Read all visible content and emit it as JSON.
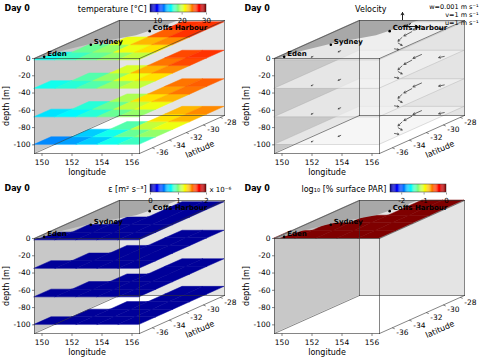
{
  "chart_data": [
    {
      "type": "surface_slices",
      "title": "temperature [°C]",
      "day_label": "Day 0",
      "xlabel": "longitude",
      "ylabel": "latitude",
      "zlabel": "depth [m]",
      "xlim": [
        149.5,
        156.5
      ],
      "xticks": [
        150,
        152,
        154,
        156
      ],
      "ylim": [
        -37.5,
        -27.5
      ],
      "yticks": [
        -36,
        -34,
        -32,
        -30,
        -28
      ],
      "zlim": [
        -110,
        0
      ],
      "zticks": [
        -100,
        -80,
        -60,
        -40,
        -20,
        0
      ],
      "places": [
        {
          "name": "Eden",
          "lon": 149.9,
          "lat": -37.07
        },
        {
          "name": "Sydney",
          "lon": 151.2,
          "lat": -33.87
        },
        {
          "name": "Coffs Harbour",
          "lon": 153.1,
          "lat": -30.3
        }
      ],
      "coast": {
        "lat": [
          -37.5,
          -35.5,
          -33.5,
          -31.5,
          -29.5,
          -27.5
        ],
        "lon": [
          149.9,
          150.3,
          151.3,
          152.9,
          153.3,
          153.5
        ]
      },
      "grid_lon_edges": [
        149.5,
        150.9,
        152.3,
        153.7,
        155.1,
        156.5
      ],
      "grid_lat_edges": [
        -37.5,
        -35.5,
        -33.5,
        -31.5,
        -29.5,
        -27.5
      ],
      "clim": [
        7,
        30
      ],
      "cticks": [
        10,
        20,
        30
      ],
      "slices": [
        {
          "depth": -2,
          "values": [
            [
              16,
              17,
              18,
              19,
              20
            ],
            [
              null,
              18,
              19,
              21,
              22
            ],
            [
              null,
              null,
              21,
              23,
              24
            ],
            [
              null,
              null,
              null,
              25,
              26
            ],
            [
              null,
              null,
              null,
              26,
              26
            ]
          ]
        },
        {
          "depth": -35,
          "values": [
            [
              16,
              16.5,
              17.5,
              19,
              20
            ],
            [
              null,
              17.5,
              19,
              21,
              22
            ],
            [
              null,
              null,
              20.5,
              23,
              24
            ],
            [
              null,
              null,
              null,
              24.5,
              25.5
            ],
            [
              null,
              null,
              null,
              25.5,
              26
            ]
          ]
        },
        {
          "depth": -68,
          "values": [
            [
              15,
              15.5,
              16.5,
              18,
              19
            ],
            [
              null,
              16.5,
              18,
              20,
              21
            ],
            [
              null,
              null,
              19.5,
              22,
              23
            ],
            [
              null,
              null,
              null,
              23.5,
              24.5
            ],
            [
              null,
              null,
              null,
              24.5,
              25
            ]
          ]
        },
        {
          "depth": -100,
          "values": [
            [
              13,
              13.5,
              14.5,
              16,
              17
            ],
            [
              null,
              14.5,
              16,
              18,
              19
            ],
            [
              null,
              null,
              17.5,
              20,
              21
            ],
            [
              null,
              null,
              null,
              22,
              23
            ],
            [
              null,
              null,
              null,
              23,
              24
            ]
          ]
        }
      ]
    },
    {
      "type": "vector_slices",
      "title": "Velocity",
      "day_label": "Day 0",
      "xlabel": "longitude",
      "ylabel": "latitude",
      "zlabel": "depth [m]",
      "xlim": [
        149.5,
        156.5
      ],
      "xticks": [
        150,
        152,
        154,
        156
      ],
      "ylim": [
        -37.5,
        -27.5
      ],
      "yticks": [
        -36,
        -34,
        -32,
        -30,
        -28
      ],
      "zlim": [
        -110,
        0
      ],
      "zticks": [
        -100,
        -80,
        -60,
        -40,
        -20,
        0
      ],
      "places": [
        {
          "name": "Eden",
          "lon": 149.9,
          "lat": -37.07
        },
        {
          "name": "Sydney",
          "lon": 151.2,
          "lat": -33.87
        },
        {
          "name": "Coffs Harbour",
          "lon": 153.1,
          "lat": -30.3
        }
      ],
      "coast": {
        "lat": [
          -37.5,
          -35.5,
          -33.5,
          -31.5,
          -29.5,
          -27.5
        ],
        "lon": [
          149.9,
          150.3,
          151.3,
          152.9,
          153.3,
          153.5
        ]
      },
      "slice_depths": [
        -2,
        -35,
        -68,
        -100
      ],
      "vectors": [
        {
          "lon": 154.2,
          "lat": -28.5,
          "u": 0,
          "v": -1.0
        },
        {
          "lon": 154.4,
          "lat": -30,
          "u": 0.1,
          "v": -1.1
        },
        {
          "lon": 154.6,
          "lat": -31.5,
          "u": 0.3,
          "v": -1.0
        },
        {
          "lon": 155.2,
          "lat": -33,
          "u": 0.6,
          "v": -0.6
        },
        {
          "lon": 155.8,
          "lat": -34.5,
          "u": 0.4,
          "v": -0.2
        },
        {
          "lon": 152.5,
          "lat": -35,
          "u": 0,
          "v": -0.3
        },
        {
          "lon": 151.5,
          "lat": -36.5,
          "u": 0,
          "v": -0.2
        },
        {
          "lon": 156,
          "lat": -29,
          "u": -0.2,
          "v": -0.3
        }
      ],
      "legend_items": [
        {
          "label": "w=0.001 m s⁻¹",
          "component": "w",
          "value": 0.001
        },
        {
          "label": "v=1 m s⁻¹",
          "component": "v",
          "value": 1
        },
        {
          "label": "u=1 m s⁻¹",
          "component": "u",
          "value": 1
        }
      ]
    },
    {
      "type": "surface_slices",
      "title": "ε [m² s⁻³]",
      "day_label": "Day 0",
      "multiplier": "x 10⁻⁶",
      "xlabel": "longitude",
      "ylabel": "latitude",
      "zlabel": "depth [m]",
      "xlim": [
        149.5,
        156.5
      ],
      "xticks": [
        150,
        152,
        154,
        156
      ],
      "ylim": [
        -37.5,
        -27.5
      ],
      "yticks": [
        -36,
        -34,
        -32,
        -30,
        -28
      ],
      "zlim": [
        -110,
        0
      ],
      "zticks": [
        -100,
        -80,
        -60,
        -40,
        -20,
        0
      ],
      "places": [
        {
          "name": "Eden",
          "lon": 149.9,
          "lat": -37.07
        },
        {
          "name": "Sydney",
          "lon": 151.2,
          "lat": -33.87
        },
        {
          "name": "Coffs Harbour",
          "lon": 153.1,
          "lat": -30.3
        }
      ],
      "coast": {
        "lat": [
          -37.5,
          -35.5,
          -33.5,
          -31.5,
          -29.5,
          -27.5
        ],
        "lon": [
          149.9,
          150.3,
          151.3,
          152.9,
          153.3,
          153.5
        ]
      },
      "grid_lon_edges": [
        149.5,
        150.9,
        152.3,
        153.7,
        155.1,
        156.5
      ],
      "grid_lat_edges": [
        -37.5,
        -35.5,
        -33.5,
        -31.5,
        -29.5,
        -27.5
      ],
      "clim": [
        0,
        2
      ],
      "cticks": [
        0,
        1,
        2
      ],
      "slices": [
        {
          "depth": -2,
          "values": [
            [
              0.05,
              0.05,
              0.05,
              0.05,
              0.05
            ],
            [
              null,
              0.05,
              0.05,
              0.05,
              0.05
            ],
            [
              null,
              null,
              0.05,
              0.05,
              0.05
            ],
            [
              null,
              null,
              null,
              0.05,
              0.05
            ],
            [
              null,
              null,
              null,
              0.05,
              0.05
            ]
          ]
        },
        {
          "depth": -35,
          "values": [
            [
              0.05,
              0.05,
              0.05,
              0.05,
              0.05
            ],
            [
              null,
              0.05,
              0.05,
              0.05,
              0.05
            ],
            [
              null,
              null,
              0.05,
              0.05,
              0.05
            ],
            [
              null,
              null,
              null,
              0.05,
              0.05
            ],
            [
              null,
              null,
              null,
              0.05,
              0.05
            ]
          ]
        },
        {
          "depth": -68,
          "values": [
            [
              0.05,
              0.05,
              0.05,
              0.05,
              0.05
            ],
            [
              null,
              0.05,
              0.05,
              0.05,
              0.05
            ],
            [
              null,
              null,
              0.05,
              0.05,
              0.05
            ],
            [
              null,
              null,
              null,
              0.05,
              0.05
            ],
            [
              null,
              null,
              null,
              0.05,
              0.05
            ]
          ]
        },
        {
          "depth": -100,
          "values": [
            [
              0.05,
              0.05,
              0.05,
              0.05,
              0.05
            ],
            [
              null,
              0.05,
              0.05,
              0.05,
              0.05
            ],
            [
              null,
              null,
              0.05,
              0.05,
              0.05
            ],
            [
              null,
              null,
              null,
              0.05,
              0.05
            ],
            [
              null,
              null,
              null,
              0.05,
              0.05
            ]
          ]
        }
      ]
    },
    {
      "type": "surface_slices",
      "title": "log₁₀ [% surface PAR]",
      "day_label": "Day 0",
      "xlabel": "longitude",
      "ylabel": "latitude",
      "zlabel": "depth [m]",
      "xlim": [
        149.5,
        156.5
      ],
      "xticks": [
        150,
        152,
        154,
        156
      ],
      "ylim": [
        -37.5,
        -27.5
      ],
      "yticks": [
        -36,
        -34,
        -32,
        -30,
        -28
      ],
      "zlim": [
        -110,
        0
      ],
      "zticks": [
        -100,
        -80,
        -60,
        -40,
        -20,
        0
      ],
      "places": [
        {
          "name": "Eden",
          "lon": 149.9,
          "lat": -37.07
        },
        {
          "name": "Sydney",
          "lon": 151.2,
          "lat": -33.87
        },
        {
          "name": "Coffs Harbour",
          "lon": 153.1,
          "lat": -30.3
        }
      ],
      "coast": {
        "lat": [
          -37.5,
          -35.5,
          -33.5,
          -31.5,
          -29.5,
          -27.5
        ],
        "lon": [
          149.9,
          150.3,
          151.3,
          152.9,
          153.3,
          153.5
        ]
      },
      "grid_lon_edges": [
        149.5,
        150.9,
        152.3,
        153.7,
        155.1,
        156.5
      ],
      "grid_lat_edges": [
        -37.5,
        -35.5,
        -33.5,
        -31.5,
        -29.5,
        -27.5
      ],
      "clim": [
        -2.5,
        0
      ],
      "cticks": [
        -2,
        -1,
        0
      ],
      "slices": [
        {
          "depth": 0,
          "values": [
            [
              0,
              0,
              0,
              0,
              0
            ],
            [
              null,
              0,
              0,
              0,
              0
            ],
            [
              null,
              null,
              0,
              0,
              0
            ],
            [
              null,
              null,
              null,
              0,
              0
            ],
            [
              null,
              null,
              null,
              0,
              0
            ]
          ]
        }
      ]
    }
  ]
}
